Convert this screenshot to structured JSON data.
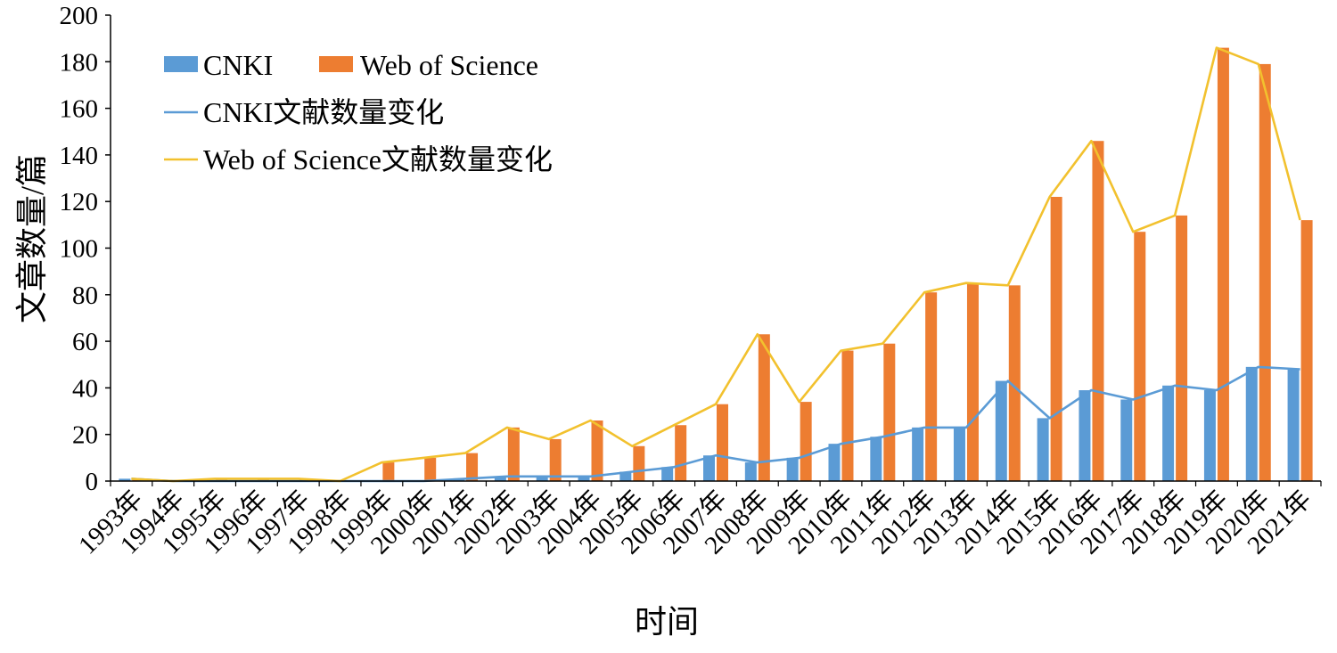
{
  "chart_data": {
    "type": "bar",
    "title": "",
    "xlabel": "时间",
    "ylabel": "文章数量/篇",
    "ylim": [
      0,
      200
    ],
    "yticks": [
      "0",
      "20",
      "40",
      "60",
      "80",
      "100",
      "120",
      "140",
      "160",
      "180",
      "200"
    ],
    "categories": [
      "1993年",
      "1994年",
      "1995年",
      "1996年",
      "1997年",
      "1998年",
      "1999年",
      "2000年",
      "2001年",
      "2002年",
      "2003年",
      "2004年",
      "2005年",
      "2006年",
      "2007年",
      "2008年",
      "2009年",
      "2010年",
      "2011年",
      "2012年",
      "2013年",
      "2014年",
      "2015年",
      "2016年",
      "2017年",
      "2018年",
      "2019年",
      "2020年",
      "2021年"
    ],
    "series": [
      {
        "name": "CNKI",
        "kind": "bar",
        "color": "#5B9BD5",
        "values": [
          1,
          0,
          0,
          0,
          0,
          0,
          0,
          0,
          1,
          2,
          2,
          2,
          4,
          6,
          11,
          8,
          10,
          16,
          19,
          23,
          23,
          43,
          27,
          39,
          35,
          41,
          39,
          49,
          48
        ]
      },
      {
        "name": "Web of Science",
        "kind": "bar",
        "color": "#ED7D31",
        "values": [
          1,
          0,
          1,
          1,
          1,
          0,
          8,
          10,
          12,
          23,
          18,
          26,
          15,
          24,
          33,
          63,
          34,
          56,
          59,
          81,
          85,
          84,
          122,
          146,
          107,
          114,
          186,
          179,
          112
        ]
      },
      {
        "name": "CNKI文献数量变化",
        "kind": "line",
        "color": "#5B9BD5",
        "of": "CNKI"
      },
      {
        "name": "Web of Science文献数量变化",
        "kind": "line",
        "color": "#F2C12E",
        "of": "Web of Science"
      }
    ],
    "legend_position": "top-left",
    "grid": false
  }
}
